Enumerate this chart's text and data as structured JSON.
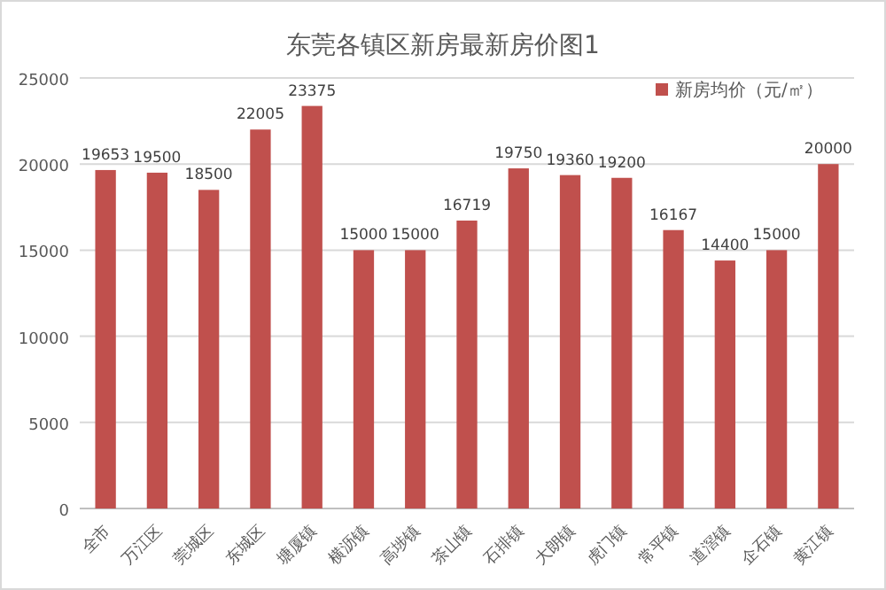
{
  "chart_data": {
    "type": "bar",
    "title": "东莞各镇区新房最新房价图1",
    "categories": [
      "全市",
      "万江区",
      "莞城区",
      "东城区",
      "塘厦镇",
      "横沥镇",
      "高埗镇",
      "茶山镇",
      "石排镇",
      "大朗镇",
      "虎门镇",
      "常平镇",
      "道滘镇",
      "企石镇",
      "黄江镇"
    ],
    "series": [
      {
        "name": "新房均价（元/㎡）",
        "color": "#c0504d",
        "values": [
          19653,
          19500,
          18500,
          22005,
          23375,
          15000,
          15000,
          16719,
          19750,
          19360,
          19200,
          16167,
          14400,
          15000,
          20000
        ]
      }
    ],
    "ylim": [
      0,
      25000
    ],
    "yticks": [
      0,
      5000,
      10000,
      15000,
      20000,
      25000
    ],
    "grid": "y",
    "legend": "top right",
    "data_labels": true
  }
}
